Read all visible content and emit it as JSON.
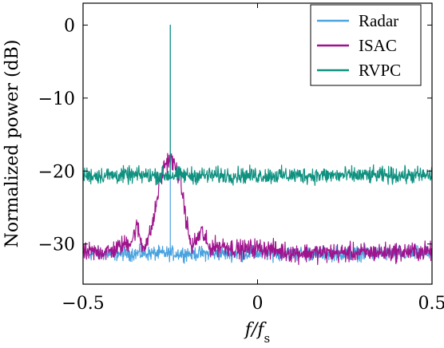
{
  "chart_data": {
    "type": "line",
    "xlabel": "f/f_s",
    "ylabel": "Normalized power (dB)",
    "xlim": [
      -0.5,
      0.5
    ],
    "ylim": [
      -35.5,
      3
    ],
    "x_ticks": [
      -0.5,
      0,
      0.5
    ],
    "x_tick_labels": [
      "−0.5",
      "0",
      "0.5"
    ],
    "y_ticks": [
      0,
      -10,
      -20,
      -30
    ],
    "y_tick_labels": [
      "0",
      "−10",
      "−20",
      "−30"
    ],
    "grid": false,
    "legend_position": "top-right",
    "series": [
      {
        "name": "Radar",
        "color": "#4aa3df",
        "noise_floor_db": -31.3,
        "noise_spread_db": 0.6,
        "peak": {
          "x": -0.25,
          "y": 0,
          "width": 0.0
        }
      },
      {
        "name": "ISAC",
        "color": "#a0138e",
        "noise_floor_db": -31.0,
        "noise_spread_db": 0.8,
        "envelope": [
          {
            "x": -0.5,
            "y": -31.2
          },
          {
            "x": -0.42,
            "y": -31.0
          },
          {
            "x": -0.38,
            "y": -30.0
          },
          {
            "x": -0.36,
            "y": -29.5
          },
          {
            "x": -0.345,
            "y": -27.5
          },
          {
            "x": -0.33,
            "y": -30.5
          },
          {
            "x": -0.31,
            "y": -29.0
          },
          {
            "x": -0.295,
            "y": -26.0
          },
          {
            "x": -0.28,
            "y": -21.5
          },
          {
            "x": -0.265,
            "y": -19.0
          },
          {
            "x": -0.25,
            "y": -18.3
          },
          {
            "x": -0.235,
            "y": -19.5
          },
          {
            "x": -0.22,
            "y": -21.5
          },
          {
            "x": -0.205,
            "y": -26.5
          },
          {
            "x": -0.19,
            "y": -30.5
          },
          {
            "x": -0.175,
            "y": -29.5
          },
          {
            "x": -0.16,
            "y": -28.2
          },
          {
            "x": -0.14,
            "y": -30.5
          },
          {
            "x": -0.1,
            "y": -30.2
          },
          {
            "x": -0.05,
            "y": -30.8
          },
          {
            "x": 0.0,
            "y": -30.5
          },
          {
            "x": 0.1,
            "y": -31.2
          },
          {
            "x": 0.3,
            "y": -31.2
          },
          {
            "x": 0.5,
            "y": -31.0
          }
        ]
      },
      {
        "name": "RVPC",
        "color": "#0f9180",
        "noise_floor_db": -20.6,
        "noise_spread_db": 0.7,
        "peak": {
          "x": -0.25,
          "y": 0,
          "width": 0.0
        }
      }
    ]
  }
}
